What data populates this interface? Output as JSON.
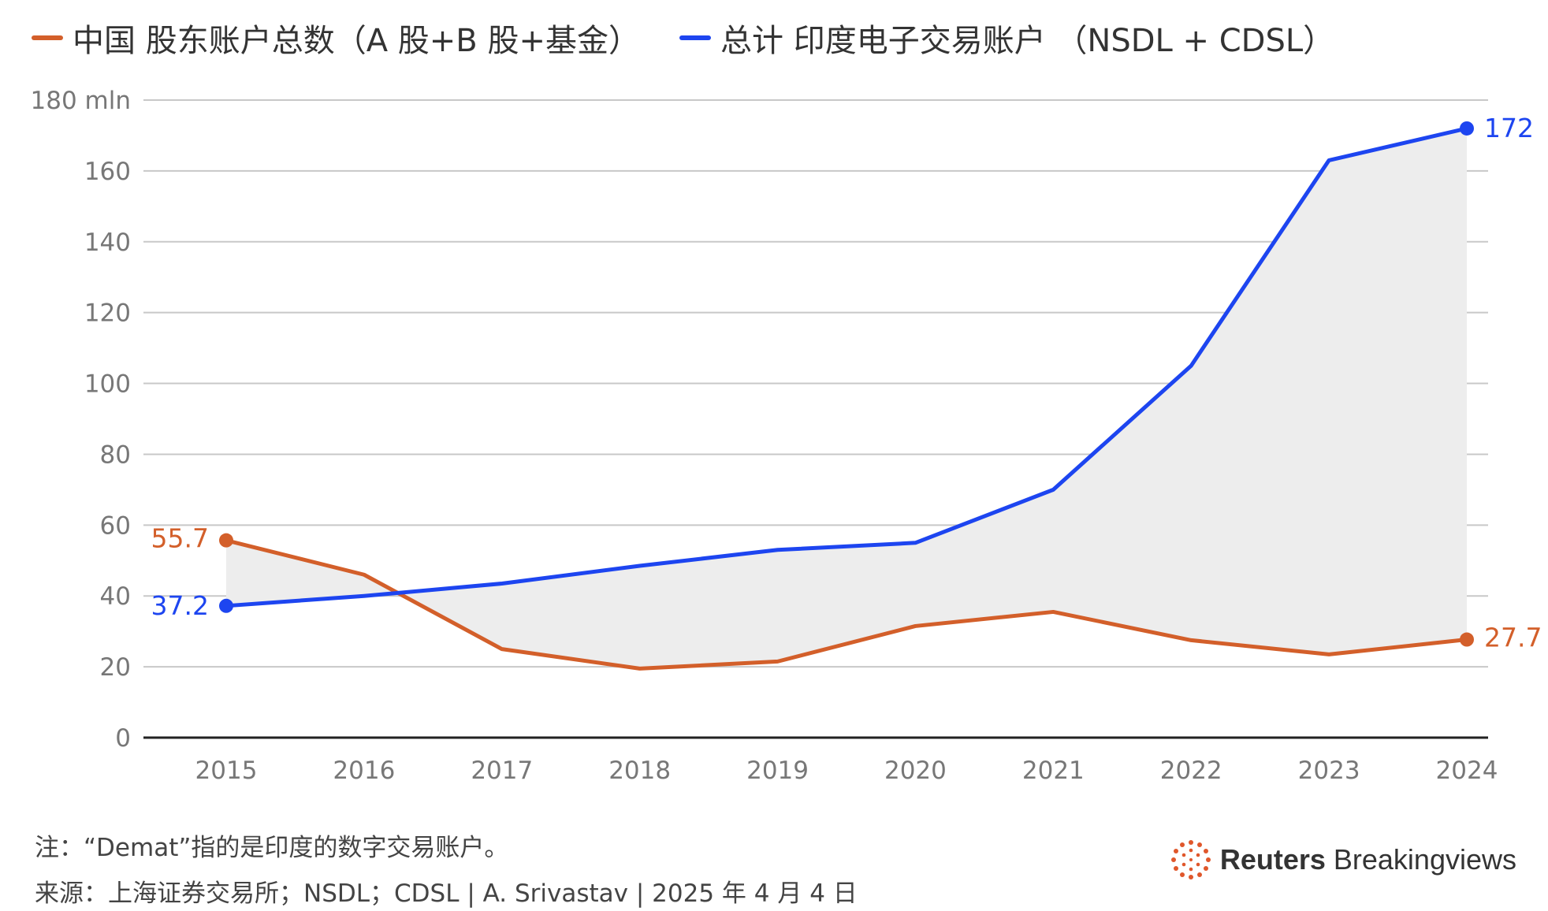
{
  "colors": {
    "china": "#d35f2a",
    "india": "#1d45f0",
    "fill": "#ededed",
    "grid": "#c8c8c8",
    "axis": "#222222",
    "tick": "#777777"
  },
  "legend": {
    "china_label": "中国 股东账户总数（A 股+B 股+基金）",
    "india_label": "总计 印度电子交易账户 （NSDL + CDSL）"
  },
  "chart_data": {
    "type": "line",
    "x": [
      "2015",
      "2016",
      "2017",
      "2018",
      "2019",
      "2020",
      "2021",
      "2022",
      "2023",
      "2024"
    ],
    "series": [
      {
        "name": "中国 股东账户总数（A 股+B 股+基金）",
        "values": [
          55.7,
          46,
          25,
          19.5,
          21.5,
          31.5,
          35.5,
          27.5,
          23.5,
          27.7
        ]
      },
      {
        "name": "总计 印度电子交易账户 （NSDL + CDSL）",
        "values": [
          37.2,
          40,
          43.5,
          48.5,
          53,
          55,
          70,
          105,
          163,
          172
        ]
      }
    ],
    "end_labels": {
      "china_start": "55.7",
      "china_end": "27.7",
      "india_start": "37.2",
      "india_end": "172"
    },
    "y_ticks": [
      "0",
      "20",
      "40",
      "60",
      "80",
      "100",
      "120",
      "140",
      "160",
      "180 mln"
    ],
    "ylim": [
      0,
      180
    ],
    "grid": true,
    "legend_position": "top-left",
    "shaded_area": "between-series"
  },
  "footer": {
    "note": "注：“Demat”指的是印度的数字交易账户。",
    "source": "来源：上海证券交易所；NSDL；CDSL | A. Srivastav | 2025 年 4 月 4 日"
  },
  "brand": {
    "name_bold": "Reuters",
    "name_light": "Breakingviews",
    "icon": "reuters-dot-ring-icon"
  }
}
